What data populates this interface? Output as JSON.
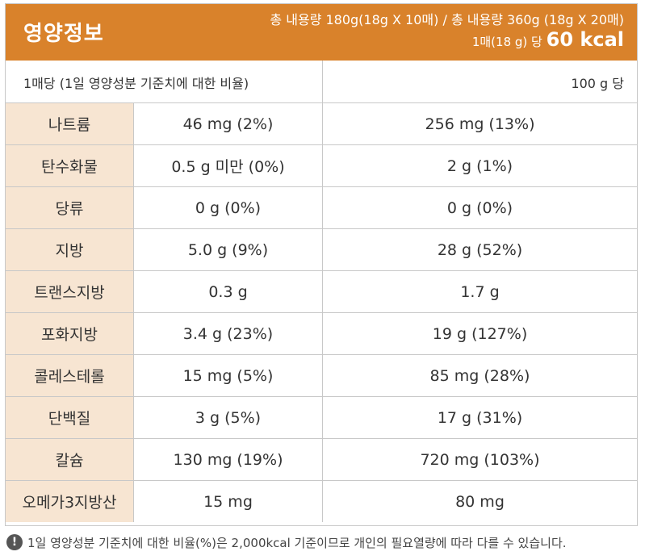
{
  "header": {
    "title": "영양정보",
    "content_line": "총 내용량 180g(18g X 10매) / 총 내용량 360g (18g X 20매)",
    "kcal_prefix": "1매(18 g) 당",
    "kcal_value": "60 kcal",
    "background": "#d9822b"
  },
  "subheader": {
    "per_serving": "1매당 (1일 영양성분 기준치에 대한 비율)",
    "per_100g": "100 g 당"
  },
  "rows": [
    {
      "name": "나트륨",
      "serving": "46 mg (2%)",
      "per100g": "256 mg (13%)"
    },
    {
      "name": "탄수화물",
      "serving": "0.5 g 미만 (0%)",
      "per100g": "2 g (1%)"
    },
    {
      "name": "당류",
      "serving": "0 g (0%)",
      "per100g": "0 g (0%)"
    },
    {
      "name": "지방",
      "serving": "5.0 g (9%)",
      "per100g": "28 g (52%)"
    },
    {
      "name": "트랜스지방",
      "serving": "0.3 g",
      "per100g": "1.7 g"
    },
    {
      "name": "포화지방",
      "serving": "3.4 g (23%)",
      "per100g": "19 g (127%)"
    },
    {
      "name": "콜레스테롤",
      "serving": "15 mg (5%)",
      "per100g": "85 mg (28%)"
    },
    {
      "name": "단백질",
      "serving": "3 g (5%)",
      "per100g": "17 g (31%)"
    },
    {
      "name": "칼슘",
      "serving": "130 mg (19%)",
      "per100g": "720 mg (103%)"
    },
    {
      "name": "오메가3지방산",
      "serving": "15 mg",
      "per100g": "80 mg"
    }
  ],
  "footnote": {
    "icon": "exclamation-icon",
    "icon_glyph": "!",
    "text": "1일 영양성분 기준치에 대한 비율(%)은 2,000kcal 기준이므로 개인의 필요열량에 따라 다를 수 있습니다."
  },
  "colors": {
    "name_cell_bg": "#f7e5d2",
    "border": "#c8c8c8"
  }
}
